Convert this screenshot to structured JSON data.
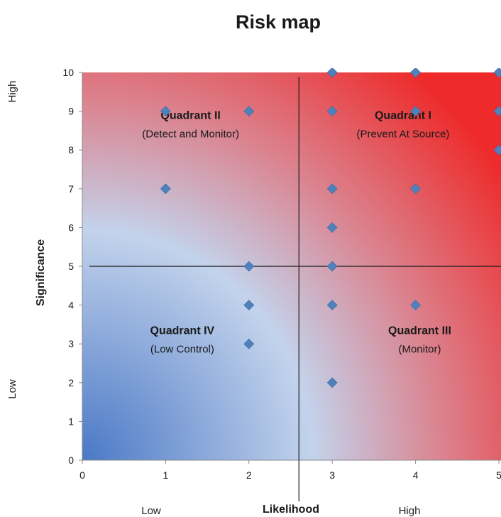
{
  "chart_data": {
    "type": "scatter",
    "title": "Risk map",
    "xlabel": "Likelihood",
    "ylabel": "Significance",
    "x_low_label": "Low",
    "x_high_label": "High",
    "y_low_label": "Low",
    "y_high_label": "High",
    "xlim": [
      0,
      5
    ],
    "ylim": [
      0,
      10
    ],
    "xticks": [
      "0",
      "1",
      "2",
      "3",
      "4",
      "5"
    ],
    "yticks": [
      "0",
      "1",
      "2",
      "3",
      "4",
      "5",
      "6",
      "7",
      "8",
      "9",
      "10"
    ],
    "grid": false,
    "background": "gradient from blue (low-left) to red (high-right)",
    "divider_x": 2.6,
    "divider_y": 5,
    "marker_color": "#4f81bd",
    "gradient_colors": {
      "low": "#4a78c6",
      "mid": "#c3d3ec",
      "mid_warm": "#d98a97",
      "high": "#ee2a2a"
    },
    "points": [
      {
        "x": 1,
        "y": 9
      },
      {
        "x": 1,
        "y": 7
      },
      {
        "x": 2,
        "y": 9
      },
      {
        "x": 2,
        "y": 5
      },
      {
        "x": 2,
        "y": 4
      },
      {
        "x": 2,
        "y": 3
      },
      {
        "x": 3,
        "y": 10
      },
      {
        "x": 3,
        "y": 9
      },
      {
        "x": 3,
        "y": 7
      },
      {
        "x": 3,
        "y": 6
      },
      {
        "x": 3,
        "y": 5
      },
      {
        "x": 3,
        "y": 4
      },
      {
        "x": 3,
        "y": 2
      },
      {
        "x": 4,
        "y": 10
      },
      {
        "x": 4,
        "y": 9
      },
      {
        "x": 4,
        "y": 7
      },
      {
        "x": 4,
        "y": 4
      },
      {
        "x": 5,
        "y": 10
      },
      {
        "x": 5,
        "y": 9
      },
      {
        "x": 5,
        "y": 8
      }
    ],
    "quadrants": [
      {
        "id": "quadrant-ii",
        "title": "Quadrant II",
        "subtitle": "(Detect and Monitor)",
        "x": 1.3,
        "y": 8.8
      },
      {
        "id": "quadrant-i",
        "title": "Quadrant I",
        "subtitle": "(Prevent At Source)",
        "x": 3.85,
        "y": 8.8
      },
      {
        "id": "quadrant-iv",
        "title": "Quadrant IV",
        "subtitle": "(Low Control)",
        "x": 1.2,
        "y": 3.25
      },
      {
        "id": "quadrant-iii",
        "title": "Quadrant III",
        "subtitle": "(Monitor)",
        "x": 4.05,
        "y": 3.25
      }
    ]
  }
}
